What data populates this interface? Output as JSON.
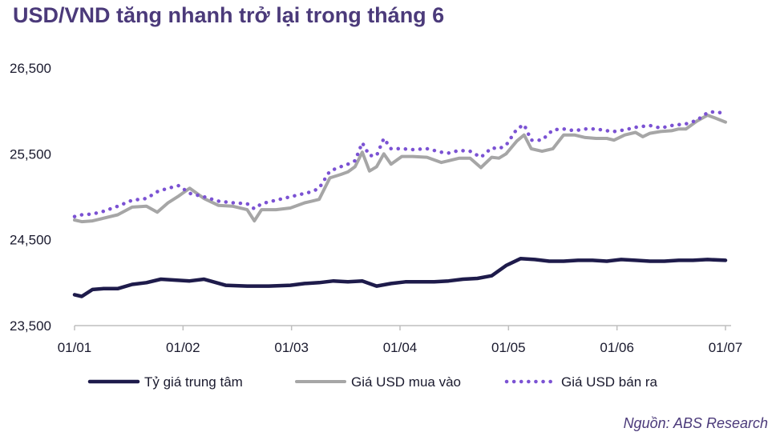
{
  "header": {
    "title": "USD/VND tăng nhanh trở lại trong tháng 6",
    "source": "Nguồn: ABS Research"
  },
  "chart_data": {
    "type": "line",
    "title": "USD/VND tăng nhanh trở lại trong tháng 6",
    "ylim": [
      23500,
      26500
    ],
    "y_ticks": [
      "23,500",
      "24,500",
      "25,500",
      "26,500"
    ],
    "y_tick_values": [
      23500,
      24500,
      25500,
      26500
    ],
    "x_ticks": [
      "01/01",
      "01/02",
      "01/03",
      "01/04",
      "01/05",
      "01/06",
      "01/07"
    ],
    "x_range": [
      0,
      181
    ],
    "grid": false,
    "legend_position": "bottom",
    "series": [
      {
        "name": "Tỷ giá trung tâm",
        "color": "#1e1b4b",
        "style": "solid",
        "x": [
          0,
          2,
          5,
          8,
          12,
          16,
          20,
          24,
          28,
          32,
          36,
          42,
          48,
          54,
          60,
          64,
          68,
          72,
          76,
          80,
          84,
          88,
          92,
          96,
          100,
          104,
          108,
          112,
          116,
          120,
          124,
          128,
          132,
          136,
          140,
          144,
          148,
          152,
          156,
          160,
          164,
          168,
          172,
          176,
          181
        ],
        "y": [
          23860,
          23840,
          23920,
          23930,
          23930,
          23980,
          24000,
          24040,
          24030,
          24020,
          24040,
          23970,
          23960,
          23960,
          23970,
          23990,
          24000,
          24020,
          24010,
          24020,
          23960,
          23990,
          24010,
          24010,
          24010,
          24020,
          24040,
          24050,
          24080,
          24200,
          24280,
          24270,
          24250,
          24250,
          24260,
          24260,
          24250,
          24270,
          24260,
          24250,
          24250,
          24260,
          24260,
          24270,
          24260
        ]
      },
      {
        "name": "Giá USD mua vào",
        "color": "#a6a6a6",
        "style": "solid",
        "x": [
          0,
          2,
          5,
          8,
          12,
          16,
          20,
          23,
          26,
          29,
          32,
          36,
          40,
          44,
          48,
          50,
          52,
          56,
          60,
          64,
          66,
          68,
          71,
          74,
          76,
          78,
          80,
          82,
          84,
          86,
          88,
          91,
          94,
          98,
          102,
          104,
          107,
          110,
          113,
          116,
          118,
          120,
          123,
          125,
          127,
          130,
          133,
          136,
          139,
          142,
          145,
          148,
          150,
          153,
          156,
          158,
          160,
          163,
          166,
          168,
          170,
          173,
          176,
          178,
          181
        ],
        "y": [
          24730,
          24710,
          24720,
          24750,
          24790,
          24880,
          24890,
          24820,
          24930,
          25010,
          25100,
          24980,
          24900,
          24890,
          24850,
          24720,
          24850,
          24850,
          24870,
          24930,
          24950,
          24970,
          25220,
          25260,
          25290,
          25350,
          25520,
          25300,
          25350,
          25500,
          25380,
          25470,
          25470,
          25460,
          25400,
          25420,
          25450,
          25450,
          25340,
          25460,
          25450,
          25500,
          25650,
          25720,
          25560,
          25530,
          25560,
          25720,
          25720,
          25690,
          25680,
          25680,
          25660,
          25720,
          25750,
          25700,
          25740,
          25760,
          25770,
          25790,
          25790,
          25880,
          25950,
          25920,
          25870
        ]
      },
      {
        "name": "Giá USD bán ra",
        "color": "#7b52d3",
        "style": "dotted",
        "x": [
          0,
          2,
          5,
          8,
          12,
          16,
          20,
          23,
          26,
          29,
          32,
          36,
          40,
          44,
          48,
          50,
          52,
          56,
          60,
          64,
          66,
          68,
          71,
          74,
          76,
          78,
          80,
          82,
          84,
          86,
          88,
          91,
          94,
          98,
          102,
          104,
          107,
          110,
          113,
          116,
          118,
          120,
          123,
          125,
          127,
          130,
          133,
          136,
          139,
          142,
          145,
          148,
          150,
          153,
          156,
          158,
          160,
          163,
          166,
          168,
          170,
          173,
          176,
          178,
          181
        ],
        "y": [
          24770,
          24790,
          24800,
          24830,
          24890,
          24960,
          24980,
          25060,
          25100,
          25130,
          25040,
          25000,
          24950,
          24930,
          24920,
          24860,
          24920,
          24960,
          25000,
          25040,
          25060,
          25100,
          25300,
          25350,
          25380,
          25420,
          25630,
          25480,
          25480,
          25680,
          25560,
          25560,
          25550,
          25560,
          25520,
          25510,
          25540,
          25530,
          25460,
          25570,
          25560,
          25600,
          25790,
          25840,
          25660,
          25660,
          25780,
          25790,
          25770,
          25790,
          25790,
          25770,
          25760,
          25780,
          25810,
          25820,
          25830,
          25800,
          25830,
          25840,
          25850,
          25890,
          25980,
          25990,
          25970
        ]
      }
    ]
  }
}
